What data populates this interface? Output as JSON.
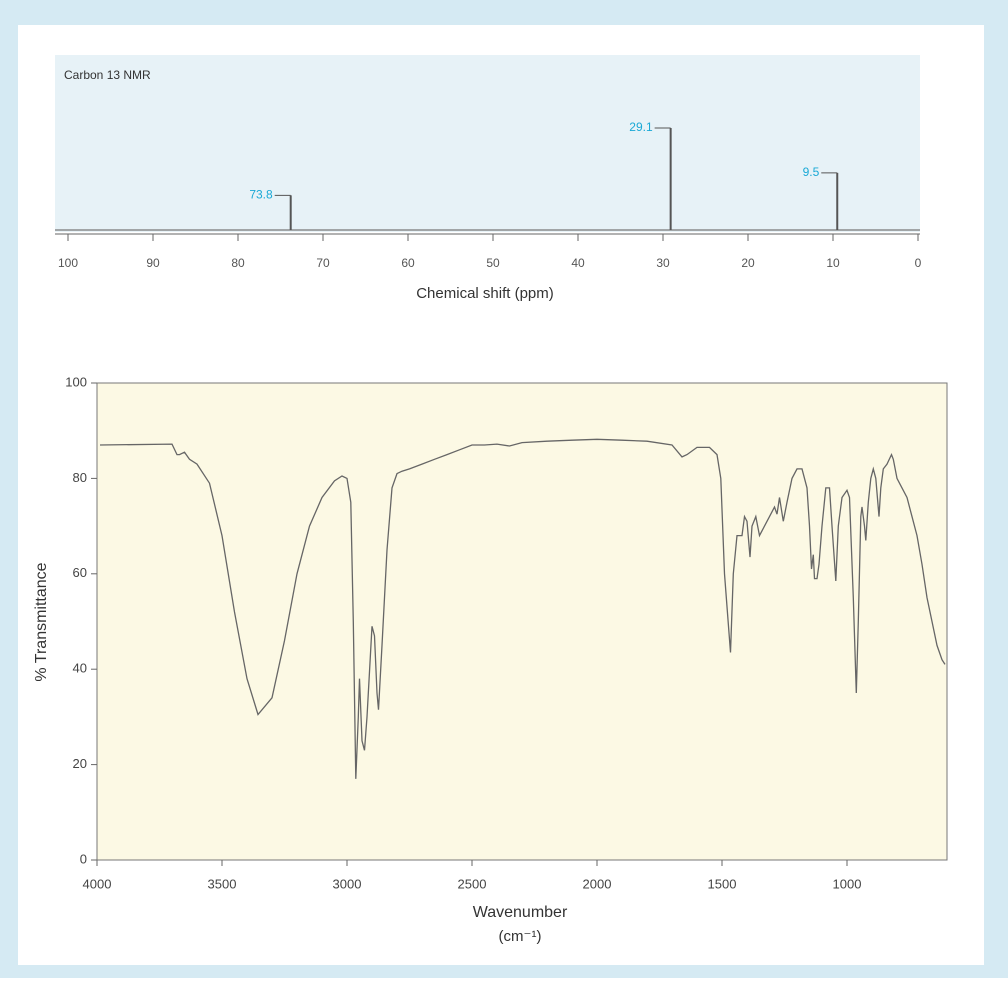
{
  "chart_data": [
    {
      "type": "stem",
      "title": "Carbon 13 NMR",
      "xlabel": "Chemical shift (ppm)",
      "x": [
        73.8,
        29.1,
        9.5
      ],
      "values": [
        34,
        100,
        56
      ],
      "color": "#555555",
      "label_color": "#1aa9d6",
      "xlim": [
        100,
        0
      ],
      "xticks": [
        100,
        90,
        80,
        70,
        60,
        50,
        40,
        30,
        20,
        10,
        0
      ]
    },
    {
      "type": "line",
      "xlabel": "Wavenumber",
      "xlabel_unit": "(cm⁻¹)",
      "ylabel": "% Transmittance",
      "color": "#666666",
      "xlim": [
        4000,
        600
      ],
      "ylim": [
        0,
        100
      ],
      "xticks": [
        4000,
        3500,
        3000,
        2500,
        2000,
        1500,
        1000
      ],
      "yticks": [
        0,
        20,
        40,
        60,
        80,
        100
      ],
      "x": [
        3988,
        3700,
        3680,
        3670,
        3650,
        3630,
        3600,
        3550,
        3500,
        3450,
        3400,
        3356,
        3300,
        3250,
        3200,
        3150,
        3100,
        3050,
        3020,
        3000,
        2985,
        2975,
        2965,
        2955,
        2950,
        2940,
        2930,
        2920,
        2900,
        2890,
        2880,
        2874,
        2860,
        2840,
        2820,
        2800,
        2780,
        2750,
        2700,
        2650,
        2600,
        2550,
        2500,
        2450,
        2400,
        2350,
        2300,
        2200,
        2100,
        2000,
        1900,
        1800,
        1700,
        1660,
        1640,
        1600,
        1550,
        1520,
        1505,
        1490,
        1466,
        1455,
        1440,
        1420,
        1410,
        1400,
        1388,
        1380,
        1365,
        1350,
        1330,
        1310,
        1290,
        1280,
        1270,
        1255,
        1240,
        1220,
        1200,
        1180,
        1160,
        1150,
        1142,
        1135,
        1130,
        1120,
        1112,
        1100,
        1085,
        1070,
        1060,
        1045,
        1035,
        1020,
        1000,
        990,
        975,
        963,
        955,
        945,
        940,
        930,
        925,
        915,
        905,
        895,
        885,
        872,
        865,
        855,
        840,
        822,
        815,
        800,
        780,
        760,
        740,
        720,
        700,
        680,
        660,
        640,
        620,
        608
      ],
      "values": [
        87,
        87.2,
        85,
        85,
        85.5,
        84,
        83,
        79,
        68,
        52,
        38,
        30.5,
        34,
        46,
        60,
        70,
        76,
        79.5,
        80.5,
        80,
        75,
        50,
        17,
        30,
        38,
        25,
        23,
        30,
        49,
        47,
        35,
        31.5,
        45,
        65,
        78,
        81,
        81.5,
        82,
        83,
        84,
        85,
        86,
        87,
        87,
        87.2,
        86.8,
        87.5,
        87.8,
        88,
        88.2,
        88,
        87.8,
        87,
        84.5,
        85,
        86.5,
        86.5,
        85,
        80,
        60,
        43.5,
        60,
        68,
        68,
        72,
        71,
        63.5,
        70,
        72,
        68,
        70,
        72,
        74,
        72.5,
        76,
        71,
        75,
        80,
        82,
        82,
        78,
        70,
        61,
        64,
        59,
        59,
        62,
        70,
        78,
        78,
        70,
        58.5,
        70,
        76,
        77.5,
        76,
        55,
        35,
        50,
        72,
        74,
        70,
        67,
        75,
        80,
        82,
        80,
        72,
        78,
        82,
        83,
        85,
        84,
        80,
        78,
        76,
        72,
        68,
        62,
        55,
        50,
        45,
        42,
        41
      ]
    }
  ]
}
